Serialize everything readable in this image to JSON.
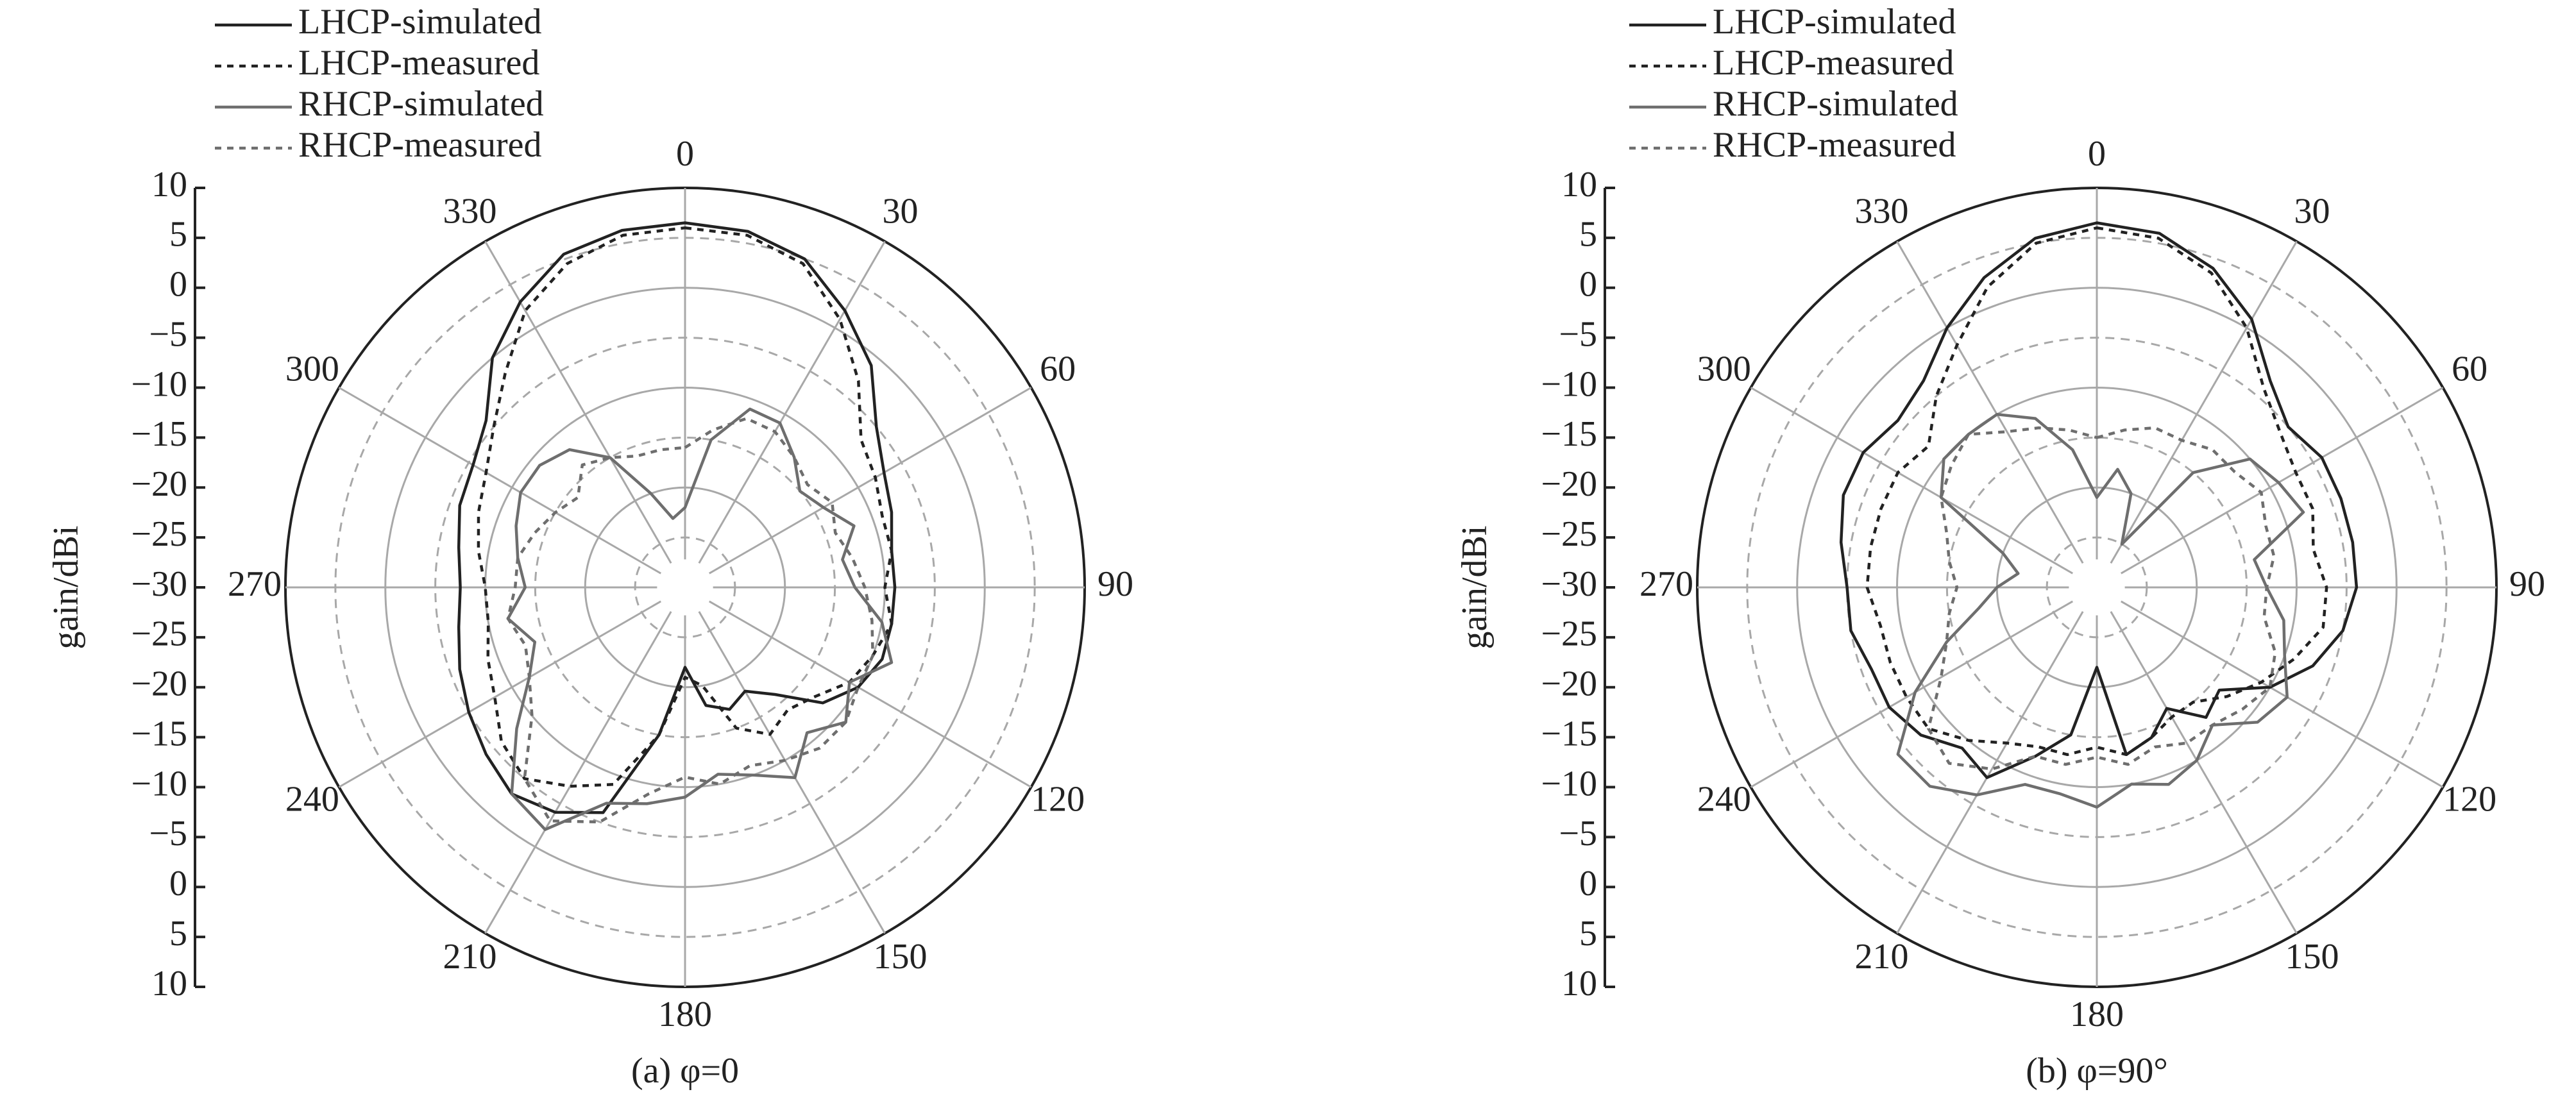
{
  "chart_data": [
    {
      "type": "polar",
      "caption": "(a) φ=0",
      "axis_label": "gain/dBi",
      "rlim": [
        -30,
        10
      ],
      "rticks": [
        {
          "value": -30,
          "label": "−30"
        },
        {
          "value": -25,
          "label": "−25"
        },
        {
          "value": -20,
          "label": "−20"
        },
        {
          "value": -15,
          "label": "−15"
        },
        {
          "value": -10,
          "label": "−10"
        },
        {
          "value": -5,
          "label": "−5"
        },
        0,
        5,
        10
      ],
      "angle_ticks": [
        0,
        30,
        60,
        90,
        120,
        150,
        180,
        210,
        240,
        270,
        300,
        330
      ],
      "theta": [
        0,
        10,
        20,
        30,
        40,
        50,
        60,
        70,
        80,
        90,
        100,
        110,
        120,
        130,
        140,
        150,
        160,
        170,
        180,
        190,
        200,
        210,
        220,
        230,
        240,
        250,
        260,
        270,
        280,
        290,
        300,
        310,
        320,
        330,
        340,
        350
      ],
      "series": [
        {
          "name": "LHCP-simulated",
          "color": "#222222",
          "dashed": false,
          "values": [
            6.5,
            6.2,
            5,
            2,
            -1,
            -5,
            -7,
            -8,
            -9,
            -9,
            -9,
            -9,
            -10,
            -12,
            -16,
            -18,
            -17,
            -18,
            -22,
            -15,
            -6,
            -4,
            -3,
            -4,
            -5,
            -6,
            -7,
            -7.5,
            -7,
            -6,
            -5.5,
            -4,
            0,
            3,
            5.5,
            6.3
          ]
        },
        {
          "name": "LHCP-measured",
          "color": "#222222",
          "dashed": true,
          "values": [
            6,
            5.8,
            4.5,
            1,
            -3,
            -7,
            -8,
            -9,
            -9,
            -10,
            -9,
            -10,
            -11,
            -13,
            -14,
            -13,
            -15,
            -20,
            -21,
            -15,
            -9,
            -7,
            -5,
            -6,
            -8,
            -9,
            -10,
            -10,
            -9,
            -8,
            -7,
            -5,
            -2,
            2,
            4.5,
            5.8
          ]
        },
        {
          "name": "RHCP-simulated",
          "color": "#6e6e6e",
          "dashed": false,
          "values": [
            -22,
            -15,
            -11,
            -11,
            -13,
            -15,
            -14,
            -12,
            -14,
            -13,
            -10,
            -8,
            -11,
            -9,
            -11,
            -8,
            -10,
            -11,
            -9,
            -8,
            -7,
            -2,
            -3,
            -8,
            -12,
            -14,
            -12,
            -14,
            -13,
            -12,
            -11,
            -11,
            -12,
            -15,
            -20,
            -23
          ]
        },
        {
          "name": "RHCP-measured",
          "color": "#6e6e6e",
          "dashed": true,
          "values": [
            -16,
            -14,
            -12,
            -12,
            -13,
            -14,
            -13,
            -14,
            -13,
            -12,
            -11,
            -10,
            -10,
            -9,
            -9,
            -10,
            -11,
            -10,
            -11,
            -9,
            -5,
            -3,
            -5,
            -10,
            -12,
            -13,
            -12,
            -13,
            -13,
            -14,
            -15,
            -16,
            -14,
            -15,
            -16,
            -16
          ]
        }
      ]
    },
    {
      "type": "polar",
      "caption": "(b) φ=90°",
      "axis_label": "gain/dBi",
      "rlim": [
        -30,
        10
      ],
      "rticks": [
        {
          "value": -30,
          "label": "−30"
        },
        {
          "value": -25,
          "label": "−25"
        },
        {
          "value": -20,
          "label": "−20"
        },
        {
          "value": -15,
          "label": "−15"
        },
        {
          "value": -10,
          "label": "−10"
        },
        {
          "value": -5,
          "label": "−5"
        },
        0,
        5,
        10
      ],
      "angle_ticks": [
        0,
        30,
        60,
        90,
        120,
        150,
        180,
        210,
        240,
        270,
        300,
        330
      ],
      "theta": [
        0,
        10,
        20,
        30,
        40,
        50,
        60,
        70,
        80,
        90,
        100,
        110,
        120,
        130,
        140,
        150,
        160,
        170,
        180,
        190,
        200,
        210,
        220,
        230,
        240,
        250,
        260,
        270,
        280,
        290,
        300,
        310,
        320,
        330,
        340,
        350
      ],
      "series": [
        {
          "name": "LHCP-simulated",
          "color": "#222222",
          "dashed": false,
          "values": [
            6.5,
            6,
            4,
            1,
            -3,
            -5,
            -4,
            -4,
            -4,
            -4,
            -5,
            -7,
            -10,
            -14,
            -13,
            -16,
            -14,
            -13,
            -22,
            -15,
            -12,
            -8,
            -9,
            -7,
            -6,
            -6,
            -5,
            -5,
            -4,
            -3,
            -3,
            -4,
            -3,
            0,
            3,
            5.5
          ]
        },
        {
          "name": "LHCP-measured",
          "color": "#222222",
          "dashed": true,
          "values": [
            6,
            5.5,
            3.5,
            0,
            -4,
            -6,
            -7,
            -7,
            -8,
            -7,
            -7,
            -9,
            -11,
            -13,
            -15,
            -15,
            -14,
            -13,
            -14,
            -13,
            -13,
            -12,
            -10,
            -8,
            -8,
            -8,
            -8,
            -7,
            -7,
            -7,
            -7,
            -8,
            -5,
            -2,
            2,
            5
          ]
        },
        {
          "name": "RHCP-simulated",
          "color": "#6e6e6e",
          "dashed": false,
          "values": [
            -21,
            -18,
            -20,
            -25,
            -15,
            -10,
            -9,
            -8,
            -14,
            -13,
            -11,
            -10,
            -8,
            -9,
            -12,
            -10,
            -9,
            -10,
            -8,
            -9,
            -9,
            -6,
            -4,
            -4,
            -9,
            -14,
            -18,
            -20,
            -22,
            -20,
            -12,
            -10,
            -10,
            -10,
            -12,
            -16
          ]
        },
        {
          "name": "RHCP-measured",
          "color": "#6e6e6e",
          "dashed": true,
          "values": [
            -15,
            -14,
            -13,
            -13,
            -12,
            -12,
            -11,
            -12,
            -12,
            -13,
            -13,
            -11,
            -10,
            -11,
            -12,
            -12,
            -13,
            -12,
            -13,
            -12,
            -12,
            -9,
            -7,
            -8,
            -12,
            -14,
            -15,
            -16,
            -15,
            -14,
            -12,
            -11,
            -10,
            -12,
            -13,
            -14
          ]
        }
      ]
    }
  ]
}
